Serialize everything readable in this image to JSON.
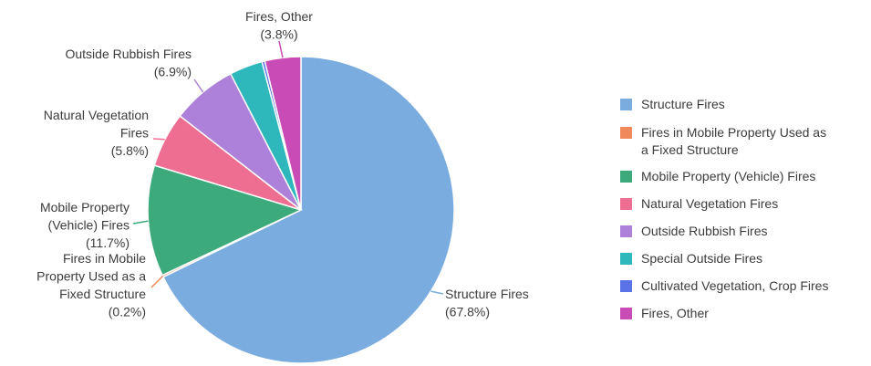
{
  "chart_data": {
    "type": "pie",
    "title": "",
    "legend_position": "right",
    "slices": [
      {
        "name": "Structure Fires",
        "value": 67.8,
        "label": [
          "Structure Fires",
          "(67.8%)"
        ],
        "color": "#7bacdf"
      },
      {
        "name": "Fires in Mobile Property Used as a Fixed Structure",
        "value": 0.2,
        "label": [
          "Fires in Mobile",
          "Property Used as a",
          "Fixed Structure",
          "(0.2%)"
        ],
        "color": "#f08a5d"
      },
      {
        "name": "Mobile Property (Vehicle) Fires",
        "value": 11.7,
        "label": [
          "Mobile Property",
          "(Vehicle) Fires",
          "(11.7%)"
        ],
        "color": "#3daa7c"
      },
      {
        "name": "Natural Vegetation Fires",
        "value": 5.8,
        "label": [
          "Natural Vegetation",
          "Fires",
          "(5.8%)"
        ],
        "color": "#ee6e92"
      },
      {
        "name": "Outside Rubbish Fires",
        "value": 6.9,
        "label": [
          "Outside Rubbish Fires",
          "(6.9%)"
        ],
        "color": "#ad81da"
      },
      {
        "name": "Special Outside Fires",
        "value": 3.5,
        "label": [],
        "color": "#2fb8bc"
      },
      {
        "name": "Cultivated Vegetation, Crop Fires",
        "value": 0.3,
        "label": [],
        "color": "#5a73e6"
      },
      {
        "name": "Fires, Other",
        "value": 3.8,
        "label": [
          "Fires, Other",
          "(3.8%)"
        ],
        "color": "#c94bb5"
      }
    ],
    "legend": [
      [
        "Structure Fires"
      ],
      [
        "Fires in Mobile Property Used as",
        "a Fixed Structure"
      ],
      [
        "Mobile Property (Vehicle) Fires"
      ],
      [
        "Natural Vegetation Fires"
      ],
      [
        "Outside Rubbish Fires"
      ],
      [
        "Special Outside Fires"
      ],
      [
        "Cultivated Vegetation, Crop Fires"
      ],
      [
        "Fires, Other"
      ]
    ]
  }
}
